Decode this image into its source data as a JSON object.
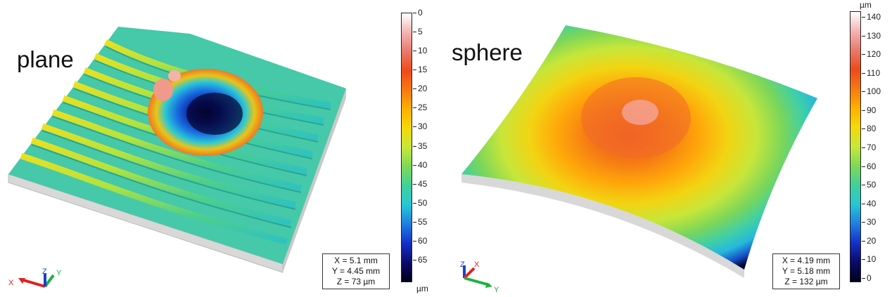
{
  "panels": [
    {
      "label": "plane",
      "colorbar": {
        "ticks": [
          "0",
          "5",
          "10",
          "15",
          "20",
          "25",
          "30",
          "35",
          "40",
          "45",
          "50",
          "55",
          "60",
          "65"
        ],
        "bottom_unit": "µm",
        "gradient": [
          "#ffffff",
          "#f4b3b3",
          "#e87a6a",
          "#ef4a1a",
          "#f57a12",
          "#ffb000",
          "#f5d90a",
          "#c7e83a",
          "#7ed957",
          "#3fd19a",
          "#27c7d6",
          "#1e7fe0",
          "#1430c8",
          "#0a0a6a",
          "#00001a"
        ]
      },
      "dimensions": [
        "X = 5.1 mm",
        "Y = 4.45 mm",
        "Z = 73 µm"
      ],
      "axes": [
        "X",
        "Y",
        "Z"
      ]
    },
    {
      "label": "sphere",
      "colorbar": {
        "top_unit": "µm",
        "ticks": [
          "140",
          "130",
          "120",
          "110",
          "100",
          "90",
          "80",
          "70",
          "60",
          "50",
          "40",
          "30",
          "20",
          "10",
          "0"
        ],
        "gradient": [
          "#ffffff",
          "#f4b3b3",
          "#e87a6a",
          "#ef4a1a",
          "#f57a12",
          "#ffb000",
          "#f5d90a",
          "#c7e83a",
          "#7ed957",
          "#3fd19a",
          "#27c7d6",
          "#1e7fe0",
          "#1430c8",
          "#0a0a6a",
          "#00001a"
        ]
      },
      "dimensions": [
        "X = 4.19 mm",
        "Y = 5.18 mm",
        "Z = 132 µm"
      ],
      "axes": [
        "Z",
        "X",
        "Y"
      ]
    }
  ]
}
